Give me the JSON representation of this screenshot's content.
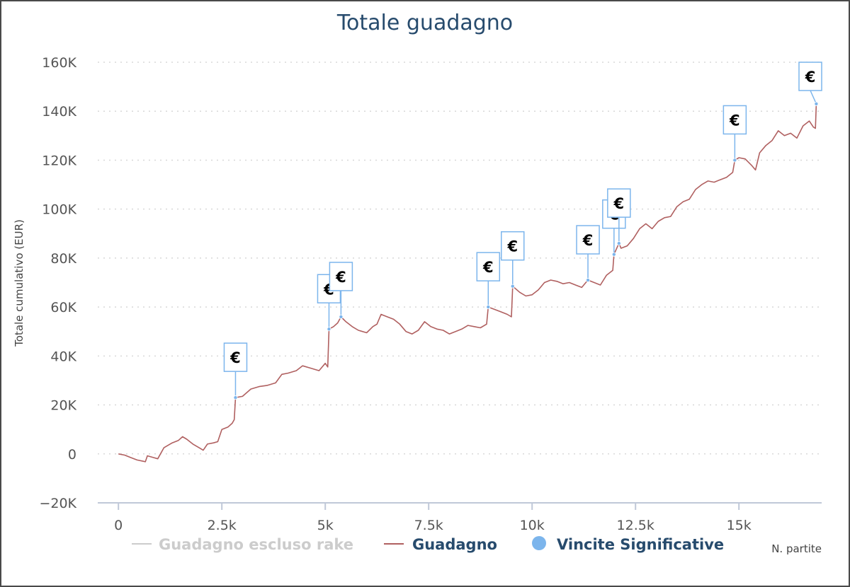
{
  "chart_data": {
    "type": "line",
    "title": "Totale guadagno",
    "ylabel": "Totale cumulativo (EUR)",
    "xlabel": "N. partite",
    "xlim": [
      -500,
      17000
    ],
    "ylim": [
      -20000,
      160000
    ],
    "x_ticks": [
      {
        "value": 0,
        "label": "0"
      },
      {
        "value": 2500,
        "label": "2.5k"
      },
      {
        "value": 5000,
        "label": "5k"
      },
      {
        "value": 7500,
        "label": "7.5k"
      },
      {
        "value": 10000,
        "label": "10k"
      },
      {
        "value": 12500,
        "label": "12.5k"
      },
      {
        "value": 15000,
        "label": "15k"
      }
    ],
    "y_ticks": [
      {
        "value": -20000,
        "label": "−20K"
      },
      {
        "value": 0,
        "label": "0"
      },
      {
        "value": 20000,
        "label": "20K"
      },
      {
        "value": 40000,
        "label": "40K"
      },
      {
        "value": 60000,
        "label": "60K"
      },
      {
        "value": 80000,
        "label": "80K"
      },
      {
        "value": 100000,
        "label": "100K"
      },
      {
        "value": 120000,
        "label": "120K"
      },
      {
        "value": 140000,
        "label": "140K"
      },
      {
        "value": 160000,
        "label": "160K"
      }
    ],
    "grid": "horizontal-dotted",
    "legend": {
      "placement": "bottom",
      "items": [
        {
          "name": "Guadagno escluso rake",
          "color": "#cccccc",
          "symbol": "line",
          "hidden": true
        },
        {
          "name": "Guadagno",
          "color": "#b06060",
          "symbol": "line",
          "hidden": false
        },
        {
          "name": "Vincite Significative",
          "color": "#7cb5ec",
          "symbol": "circle",
          "hidden": false
        }
      ]
    },
    "series": [
      {
        "name": "Guadagno",
        "color": "#b06060",
        "points": [
          [
            0,
            0
          ],
          [
            150,
            -500
          ],
          [
            300,
            -1500
          ],
          [
            450,
            -2500
          ],
          [
            600,
            -3000
          ],
          [
            650,
            -3200
          ],
          [
            700,
            -800
          ],
          [
            850,
            -1500
          ],
          [
            950,
            -2000
          ],
          [
            1100,
            2500
          ],
          [
            1300,
            4500
          ],
          [
            1450,
            5500
          ],
          [
            1550,
            7000
          ],
          [
            1650,
            6000
          ],
          [
            1800,
            4000
          ],
          [
            1950,
            2500
          ],
          [
            2050,
            1500
          ],
          [
            2150,
            4000
          ],
          [
            2300,
            4500
          ],
          [
            2400,
            5000
          ],
          [
            2500,
            10000
          ],
          [
            2650,
            11000
          ],
          [
            2750,
            12500
          ],
          [
            2800,
            14000
          ],
          [
            2830,
            23000
          ],
          [
            3000,
            23500
          ],
          [
            3200,
            26500
          ],
          [
            3400,
            27500
          ],
          [
            3600,
            28000
          ],
          [
            3800,
            29000
          ],
          [
            3950,
            32500
          ],
          [
            4100,
            33000
          ],
          [
            4300,
            34000
          ],
          [
            4450,
            36000
          ],
          [
            4650,
            35000
          ],
          [
            4850,
            34000
          ],
          [
            5000,
            37000
          ],
          [
            5060,
            35500
          ],
          [
            5090,
            51000
          ],
          [
            5200,
            52000
          ],
          [
            5300,
            53500
          ],
          [
            5380,
            56000
          ],
          [
            5500,
            54000
          ],
          [
            5650,
            52000
          ],
          [
            5800,
            50500
          ],
          [
            6000,
            49500
          ],
          [
            6150,
            52000
          ],
          [
            6250,
            53000
          ],
          [
            6350,
            57000
          ],
          [
            6500,
            56000
          ],
          [
            6650,
            55000
          ],
          [
            6800,
            53000
          ],
          [
            6950,
            50000
          ],
          [
            7100,
            49000
          ],
          [
            7250,
            50500
          ],
          [
            7400,
            54000
          ],
          [
            7550,
            52000
          ],
          [
            7700,
            51000
          ],
          [
            7850,
            50500
          ],
          [
            8000,
            49000
          ],
          [
            8150,
            50000
          ],
          [
            8300,
            51000
          ],
          [
            8450,
            52500
          ],
          [
            8600,
            52000
          ],
          [
            8750,
            51500
          ],
          [
            8900,
            53000
          ],
          [
            8940,
            60000
          ],
          [
            9100,
            59000
          ],
          [
            9250,
            58000
          ],
          [
            9400,
            57000
          ],
          [
            9500,
            56000
          ],
          [
            9530,
            68500
          ],
          [
            9700,
            66000
          ],
          [
            9850,
            64500
          ],
          [
            10000,
            65000
          ],
          [
            10150,
            67000
          ],
          [
            10300,
            70000
          ],
          [
            10450,
            71000
          ],
          [
            10600,
            70500
          ],
          [
            10750,
            69500
          ],
          [
            10900,
            70000
          ],
          [
            11050,
            69000
          ],
          [
            11200,
            68000
          ],
          [
            11350,
            71000
          ],
          [
            11500,
            70000
          ],
          [
            11650,
            69000
          ],
          [
            11800,
            73000
          ],
          [
            11950,
            75000
          ],
          [
            11980,
            81500
          ],
          [
            12100,
            86000
          ],
          [
            12150,
            84000
          ],
          [
            12300,
            85000
          ],
          [
            12450,
            88000
          ],
          [
            12600,
            92000
          ],
          [
            12750,
            94000
          ],
          [
            12900,
            92000
          ],
          [
            13050,
            95000
          ],
          [
            13200,
            96500
          ],
          [
            13350,
            97000
          ],
          [
            13500,
            101000
          ],
          [
            13650,
            103000
          ],
          [
            13800,
            104000
          ],
          [
            13950,
            108000
          ],
          [
            14100,
            110000
          ],
          [
            14250,
            111500
          ],
          [
            14400,
            111000
          ],
          [
            14550,
            112000
          ],
          [
            14700,
            113000
          ],
          [
            14850,
            115000
          ],
          [
            14900,
            120000
          ],
          [
            15000,
            121000
          ],
          [
            15150,
            120500
          ],
          [
            15300,
            118000
          ],
          [
            15400,
            116000
          ],
          [
            15500,
            123000
          ],
          [
            15650,
            126000
          ],
          [
            15800,
            128000
          ],
          [
            15950,
            132000
          ],
          [
            16100,
            130000
          ],
          [
            16250,
            131000
          ],
          [
            16400,
            129000
          ],
          [
            16550,
            134000
          ],
          [
            16700,
            136000
          ],
          [
            16800,
            133500
          ],
          [
            16850,
            133000
          ],
          [
            16870,
            143000
          ]
        ]
      }
    ],
    "flags": [
      {
        "x": 2830,
        "y": 23000,
        "text": "€"
      },
      {
        "x": 5090,
        "y": 51000,
        "text": "€"
      },
      {
        "x": 5380,
        "y": 56000,
        "text": "€"
      },
      {
        "x": 8940,
        "y": 60000,
        "text": "€"
      },
      {
        "x": 9530,
        "y": 68500,
        "text": "€"
      },
      {
        "x": 11350,
        "y": 71000,
        "text": "€"
      },
      {
        "x": 11980,
        "y": 81500,
        "text": "€"
      },
      {
        "x": 12100,
        "y": 86000,
        "text": "€"
      },
      {
        "x": 14900,
        "y": 120000,
        "text": "€"
      },
      {
        "x": 16870,
        "y": 143000,
        "text": "€"
      }
    ]
  }
}
